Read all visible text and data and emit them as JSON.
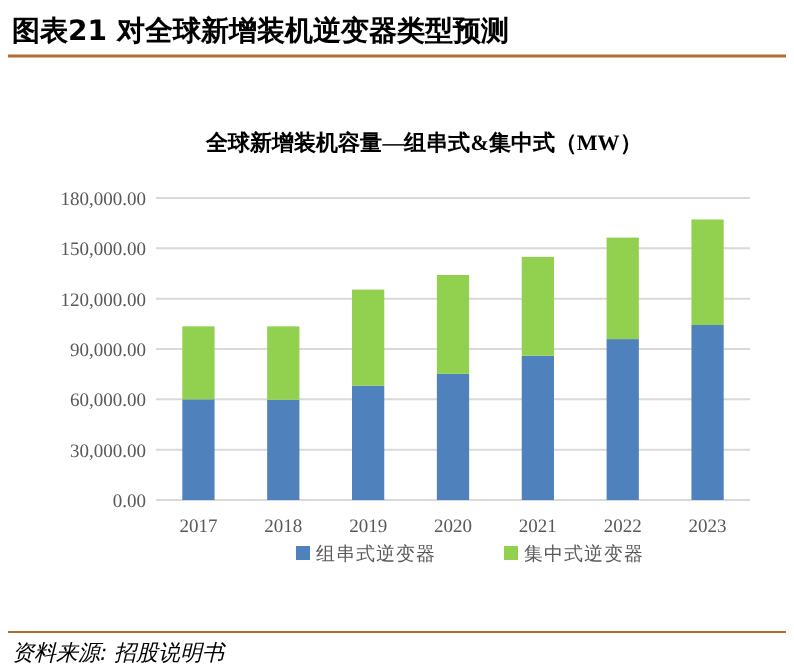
{
  "chart_data": {
    "type": "bar",
    "stacked": true,
    "title": "全球新增装机容量—组串式&集中式（MW）",
    "subtitle": "图表21  对全球新增装机逆变器类型预测",
    "categories": [
      "2017",
      "2018",
      "2019",
      "2020",
      "2021",
      "2022",
      "2023"
    ],
    "series": [
      {
        "name": "组串式逆变器",
        "color": "#4f81bd",
        "values": [
          60000,
          59700,
          68100,
          75200,
          86000,
          95900,
          104300
        ]
      },
      {
        "name": "集中式逆变器",
        "color": "#92d050",
        "values": [
          43500,
          43800,
          57300,
          58900,
          58900,
          60500,
          62900
        ]
      }
    ],
    "ylim": [
      0,
      180000
    ],
    "yticks": [
      {
        "value": 0,
        "label": "0.00"
      },
      {
        "value": 30000,
        "label": "30,000.00"
      },
      {
        "value": 60000,
        "label": "60,000.00"
      },
      {
        "value": 90000,
        "label": "90,000.00"
      },
      {
        "value": 120000,
        "label": "120,000.00"
      },
      {
        "value": 150000,
        "label": "150,000.00"
      },
      {
        "value": 180000,
        "label": "180,000.00"
      }
    ],
    "grid": "y",
    "legend": "bottom",
    "annotations": [
      "资料来源: 招股说明书"
    ]
  }
}
